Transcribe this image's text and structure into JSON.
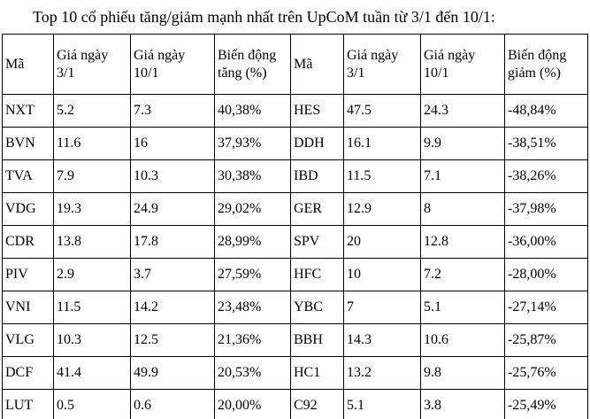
{
  "title": "Top 10 cổ phiếu tăng/giảm mạnh nhất trên UpCoM tuần từ 3/1 đến 10/1:",
  "table": {
    "headers": [
      "Mã",
      "Giá ngày\n3/1",
      "Giá ngày\n10/1",
      "Biến động\ntăng (%)",
      "Mã",
      "Giá ngày\n3/1",
      "Giá ngày\n10/1",
      "Biến động\ngiảm (%)"
    ],
    "gainers": [
      {
        "code": "NXT",
        "price_start": "5.2",
        "price_end": "7.3",
        "change": "40,38%"
      },
      {
        "code": "BVN",
        "price_start": "11.6",
        "price_end": "16",
        "change": "37,93%"
      },
      {
        "code": "TVA",
        "price_start": "7.9",
        "price_end": "10.3",
        "change": "30,38%"
      },
      {
        "code": "VDG",
        "price_start": "19.3",
        "price_end": "24.9",
        "change": "29,02%"
      },
      {
        "code": "CDR",
        "price_start": "13.8",
        "price_end": "17.8",
        "change": "28,99%"
      },
      {
        "code": "PIV",
        "price_start": "2.9",
        "price_end": "3.7",
        "change": "27,59%"
      },
      {
        "code": "VNI",
        "price_start": "11.5",
        "price_end": "14.2",
        "change": "23,48%"
      },
      {
        "code": "VLG",
        "price_start": "10.3",
        "price_end": "12.5",
        "change": "21,36%"
      },
      {
        "code": "DCF",
        "price_start": "41.4",
        "price_end": "49.9",
        "change": "20,53%"
      },
      {
        "code": "LUT",
        "price_start": "0.5",
        "price_end": "0.6",
        "change": "20,00%"
      }
    ],
    "losers": [
      {
        "code": "HES",
        "price_start": "47.5",
        "price_end": "24.3",
        "change": "-48,84%"
      },
      {
        "code": "DDH",
        "price_start": "16.1",
        "price_end": "9.9",
        "change": "-38,51%"
      },
      {
        "code": "IBD",
        "price_start": "11.5",
        "price_end": "7.1",
        "change": "-38,26%"
      },
      {
        "code": "GER",
        "price_start": "12.9",
        "price_end": "8",
        "change": "-37,98%"
      },
      {
        "code": "SPV",
        "price_start": "20",
        "price_end": "12.8",
        "change": "-36,00%"
      },
      {
        "code": "HFC",
        "price_start": "10",
        "price_end": "7.2",
        "change": "-28,00%"
      },
      {
        "code": "YBC",
        "price_start": "7",
        "price_end": "5.1",
        "change": "-27,14%"
      },
      {
        "code": "BBH",
        "price_start": "14.3",
        "price_end": "10.6",
        "change": "-25,87%"
      },
      {
        "code": "HC1",
        "price_start": "13.2",
        "price_end": "9.8",
        "change": "-25,76%"
      },
      {
        "code": "C92",
        "price_start": "5.1",
        "price_end": "3.8",
        "change": "-25,49%"
      }
    ],
    "colors": {
      "text": "#000000",
      "border": "#000000",
      "background": "#ffffff"
    }
  }
}
